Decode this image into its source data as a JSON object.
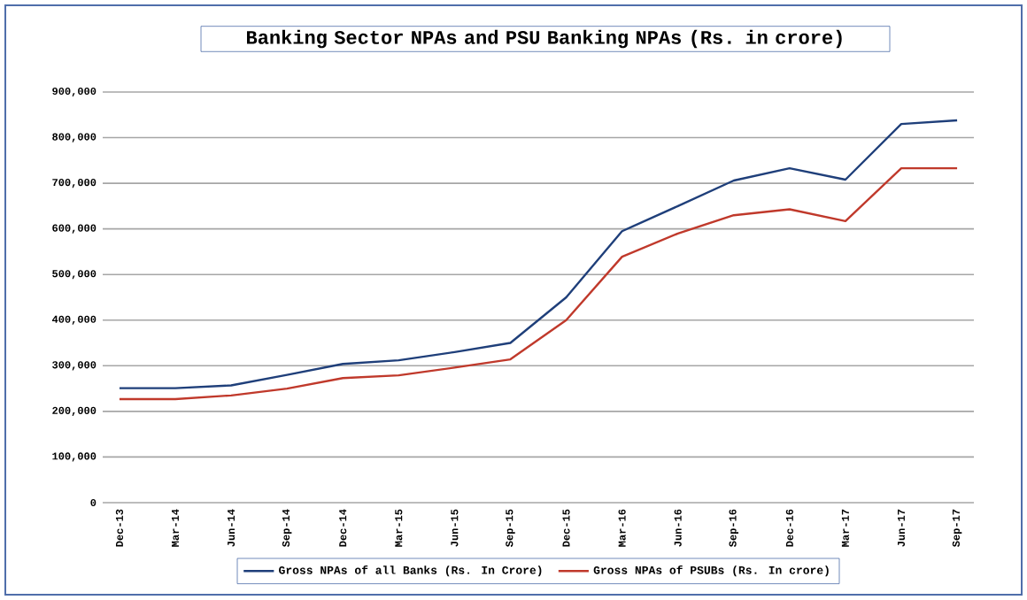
{
  "chart_data": {
    "type": "line",
    "title": "Banking Sector NPAs and PSU Banking NPAs (Rs. in crore)",
    "categories": [
      "Dec-13",
      "Mar-14",
      "Jun-14",
      "Sep-14",
      "Dec-14",
      "Mar-15",
      "Jun-15",
      "Sep-15",
      "Dec-15",
      "Mar-16",
      "Jun-16",
      "Sep-16",
      "Dec-16",
      "Mar-17",
      "Jun-17",
      "Sep-17"
    ],
    "series": [
      {
        "name": "Gross NPAs of all Banks (Rs. In Crore)",
        "color": "#1f3f7a",
        "values": [
          251000,
          251000,
          257000,
          280000,
          304000,
          312000,
          330000,
          350000,
          450000,
          595000,
          650000,
          706000,
          733000,
          708000,
          830000,
          838000
        ]
      },
      {
        "name": "Gross NPAs of PSUBs (Rs. In crore)",
        "color": "#c0392b",
        "values": [
          227000,
          227000,
          235000,
          250000,
          273000,
          279000,
          296000,
          314000,
          400000,
          539000,
          590000,
          630000,
          643000,
          617000,
          733000,
          733000
        ]
      }
    ],
    "ylim": [
      0,
      900000
    ],
    "yticks": [
      0,
      {
        "value": 100000,
        "label": "100,000"
      },
      {
        "value": 200000,
        "label": "200,000"
      },
      {
        "value": 300000,
        "label": "300,000"
      },
      {
        "value": 400000,
        "label": "400,000"
      },
      {
        "value": 500000,
        "label": "500,000"
      },
      {
        "value": 600000,
        "label": "600,000"
      },
      {
        "value": 700000,
        "label": "700,000"
      },
      {
        "value": 800000,
        "label": "800,000"
      },
      {
        "value": 900000,
        "label": "900,000"
      }
    ],
    "grid": "y",
    "legend": "bottom",
    "marker": "none",
    "line_style": "solid"
  }
}
